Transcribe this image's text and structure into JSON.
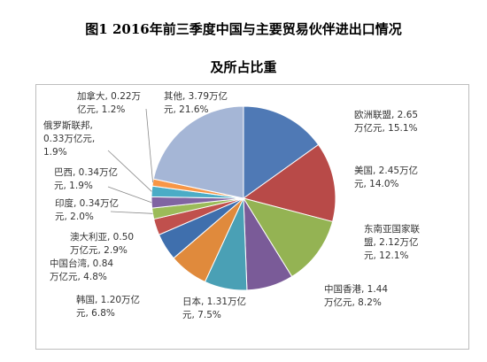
{
  "title_line1": "图1    2016年前三季度中国与主要贸易伙伴进出口情况",
  "title_line2": "及所占比重",
  "chart_data": {
    "type": "pie",
    "slices": [
      {
        "name": "欧洲联盟",
        "value": 2.65,
        "percent": 15.1,
        "color": "#4f79b5",
        "label_lines": [
          "欧洲联盟, 2.65",
          "万亿元, 15.1%"
        ]
      },
      {
        "name": "美国",
        "value": 2.45,
        "percent": 14.0,
        "color": "#b84a48",
        "label_lines": [
          "美国, 2.45万亿",
          "元, 14.0%"
        ]
      },
      {
        "name": "东南亚国家联盟",
        "value": 2.12,
        "percent": 12.1,
        "color": "#94b353",
        "label_lines": [
          "东南亚国家联",
          "盟, 2.12万亿",
          "元, 12.1%"
        ]
      },
      {
        "name": "中国香港",
        "value": 1.44,
        "percent": 8.2,
        "color": "#7a5b98",
        "label_lines": [
          "中国香港, 1.44",
          "万亿元, 8.2%"
        ]
      },
      {
        "name": "日本",
        "value": 1.31,
        "percent": 7.5,
        "color": "#4aa0b5",
        "label_lines": [
          "日本, 1.31万亿",
          "元, 7.5%"
        ]
      },
      {
        "name": "韩国",
        "value": 1.2,
        "percent": 6.8,
        "color": "#e08a3c",
        "label_lines": [
          "韩国, 1.20万亿",
          "元, 6.8%"
        ]
      },
      {
        "name": "中国台湾",
        "value": 0.84,
        "percent": 4.8,
        "color": "#3f6fad",
        "label_lines": [
          "中国台湾, 0.84",
          "万亿元, 4.8%"
        ]
      },
      {
        "name": "澳大利亚",
        "value": 0.5,
        "percent": 2.9,
        "color": "#c0504d",
        "label_lines": [
          "澳大利亚, 0.50",
          "万亿元, 2.9%"
        ]
      },
      {
        "name": "印度",
        "value": 0.34,
        "percent": 2.0,
        "color": "#9bbb59",
        "label_lines": [
          "印度, 0.34万亿",
          "元, 2.0%"
        ]
      },
      {
        "name": "巴西",
        "value": 0.34,
        "percent": 1.9,
        "color": "#8064a2",
        "label_lines": [
          "巴西, 0.34万亿",
          "元, 1.9%"
        ]
      },
      {
        "name": "俄罗斯联邦",
        "value": 0.33,
        "percent": 1.9,
        "color": "#4bacc6",
        "label_lines": [
          "俄罗斯联邦,",
          "0.33万亿元,",
          "1.9%"
        ]
      },
      {
        "name": "加拿大",
        "value": 0.22,
        "percent": 1.2,
        "color": "#f79646",
        "label_lines": [
          "加拿大, 0.22万",
          "亿元, 1.2%"
        ]
      },
      {
        "name": "其他",
        "value": 3.79,
        "percent": 21.6,
        "color": "#a5b6d6",
        "label_lines": [
          "其他, 3.79万亿",
          "元, 21.6%"
        ]
      }
    ]
  }
}
